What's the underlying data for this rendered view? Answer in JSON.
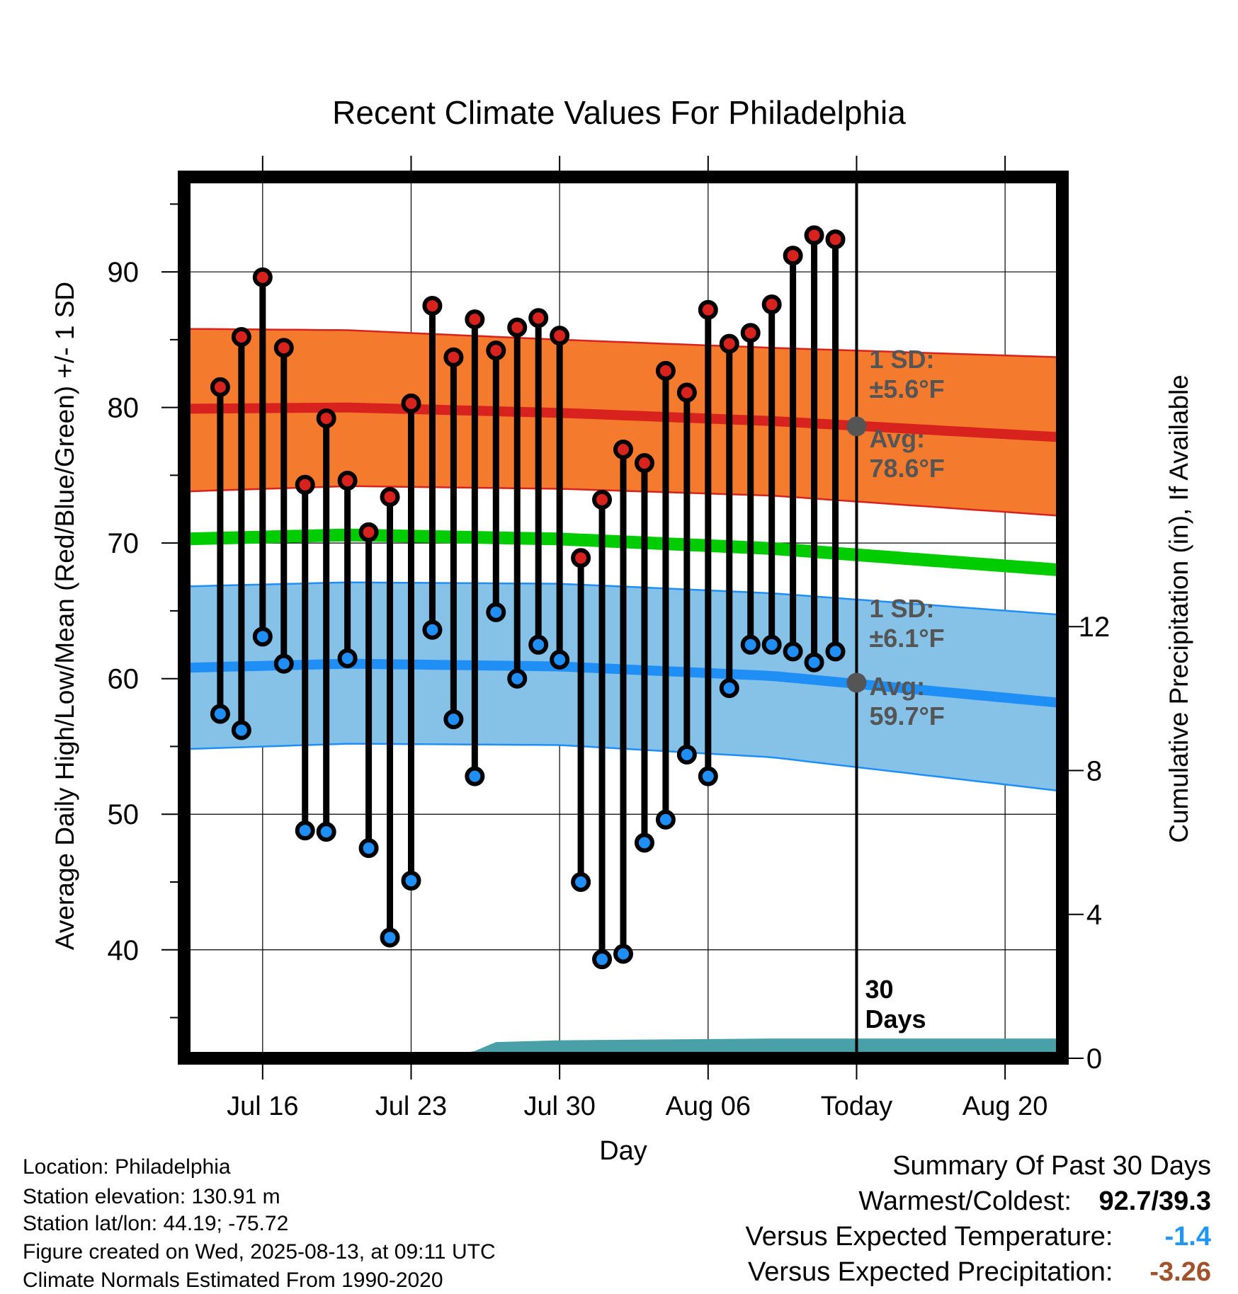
{
  "chart_data": {
    "type": "line",
    "title": "Recent Climate Values For Philadelphia",
    "xlabel": "Day",
    "ylabel_left": "Average Daily High/Low/Mean (Red/Blue/Green) +/- 1 SD",
    "ylabel_right": "Cumulative Precipitation (in), If Available",
    "x_ticks": [
      {
        "day": 16,
        "label": "Jul 16"
      },
      {
        "day": 23,
        "label": "Jul 23"
      },
      {
        "day": 30,
        "label": "Jul 30"
      },
      {
        "day": 37,
        "label": "Aug 06"
      },
      {
        "day": 44,
        "label": "Today"
      },
      {
        "day": 51,
        "label": "Aug 20"
      }
    ],
    "xlim": [
      12.3,
      53.7
    ],
    "ylim": [
      32,
      97
    ],
    "y_ticks_left": [
      40,
      50,
      60,
      70,
      80,
      90
    ],
    "precip_ylim": [
      0,
      24.5
    ],
    "y_ticks_right": [
      0,
      4,
      8,
      12
    ],
    "grid": true,
    "today_day": 44,
    "days_label_line1": "30",
    "days_label_line2": "Days",
    "daily": {
      "days": [
        14,
        15,
        16,
        17,
        18,
        19,
        20,
        21,
        22,
        23,
        24,
        25,
        26,
        27,
        28,
        29,
        30,
        31,
        32,
        33,
        34,
        35,
        36,
        37,
        38,
        39,
        40,
        41,
        42,
        43
      ],
      "high": [
        81.5,
        85.2,
        89.6,
        84.4,
        74.3,
        79.2,
        74.6,
        70.8,
        73.4,
        80.3,
        87.5,
        83.7,
        86.5,
        84.2,
        85.9,
        86.6,
        85.3,
        68.9,
        73.2,
        76.9,
        75.9,
        82.7,
        81.1,
        87.2,
        84.7,
        85.5,
        87.6,
        91.2,
        92.7,
        92.4
      ],
      "low": [
        57.4,
        56.2,
        63.1,
        61.1,
        48.8,
        48.7,
        61.5,
        47.5,
        40.9,
        45.1,
        63.6,
        57.0,
        52.8,
        64.9,
        60.0,
        62.5,
        61.4,
        45.0,
        39.3,
        39.7,
        47.9,
        49.6,
        54.4,
        52.8,
        59.3,
        62.5,
        62.5,
        62.0,
        61.2,
        62.0
      ]
    },
    "normals": {
      "days": [
        12.3,
        20,
        30,
        40,
        53.7
      ],
      "high_mean": [
        79.9,
        80.0,
        79.6,
        79.0,
        77.8
      ],
      "high_upper": [
        85.8,
        85.7,
        85.0,
        84.4,
        83.7
      ],
      "high_lower": [
        73.8,
        74.2,
        74.0,
        73.5,
        72.0
      ],
      "low_mean": [
        60.8,
        61.1,
        60.9,
        60.2,
        58.2
      ],
      "low_upper": [
        66.8,
        67.1,
        67.0,
        66.3,
        64.7
      ],
      "low_lower": [
        54.8,
        55.2,
        55.1,
        54.2,
        51.7
      ],
      "mean": [
        70.3,
        70.6,
        70.3,
        69.6,
        68.0
      ]
    },
    "precip": {
      "days": [
        12.3,
        18,
        22,
        25,
        26,
        27,
        30,
        40,
        53.7
      ],
      "values": [
        0.0,
        0.02,
        0.05,
        0.1,
        0.2,
        0.45,
        0.5,
        0.55,
        0.55
      ]
    },
    "annotations": {
      "high_sd_line1": "1 SD:",
      "high_sd_line2": "±5.6°F",
      "high_avg_line1": "Avg:",
      "high_avg_line2": "78.6°F",
      "high_avg_value": 78.6,
      "low_sd_line1": "1 SD:",
      "low_sd_line2": "±6.1°F",
      "low_avg_line1": "Avg:",
      "low_avg_line2": "59.7°F",
      "low_avg_value": 59.7
    },
    "colors": {
      "high_band": "#f47b2e",
      "high_line": "#d7221e",
      "high_dot": "#d7221e",
      "low_band": "#86c1e8",
      "low_line": "#1f8ff5",
      "low_dot": "#1f8ff5",
      "mean_line": "#00cc00",
      "precip": "#4aa0a8",
      "annotation": "#555555"
    }
  },
  "info": {
    "location": "Location: Philadelphia",
    "elevation": "Station elevation: 130.91 m",
    "latlon": "Station lat/lon: 44.19; -75.72",
    "created": "Figure created on Wed, 2025-08-13, at 09:11 UTC",
    "normals": "Climate Normals Estimated From 1990-2020"
  },
  "summary": {
    "title": "Summary Of Past 30 Days",
    "warm_cold_label": "Warmest/Coldest:",
    "warm_cold_value": "92.7/39.3",
    "temp_label": "Versus Expected Temperature:",
    "temp_value": "-1.4",
    "temp_color": "#2196f3",
    "precip_label": "Versus Expected Precipitation:",
    "precip_value": "-3.26",
    "precip_color": "#a0522d"
  }
}
